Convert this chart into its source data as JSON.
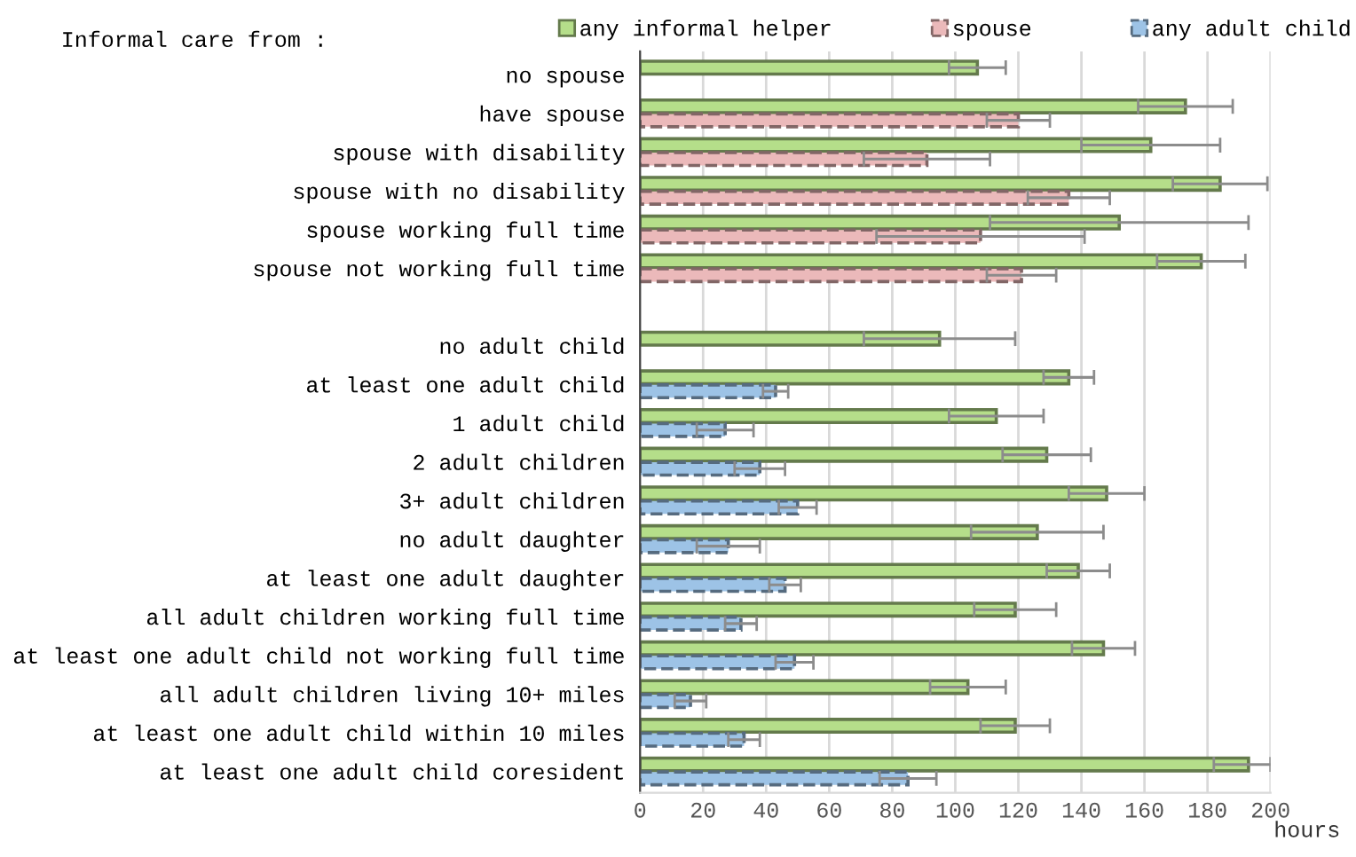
{
  "chart_data": {
    "type": "bar",
    "orientation": "horizontal",
    "legend_title": "Informal care from :",
    "xlabel": "hours",
    "categories": [
      "no spouse",
      "have spouse",
      "spouse with disability",
      "spouse with no disability",
      "spouse working full time",
      "spouse not working full time",
      null,
      "no adult child",
      "at least one adult child",
      "1 adult child",
      "2 adult children",
      "3+ adult children",
      "no adult daughter",
      "at least one adult daughter",
      "all adult children working full time",
      "at least one adult child not working full time",
      "all adult children living 10+ miles",
      "at least one adult child within 10 miles",
      "at least one adult child coresident"
    ],
    "series": [
      {
        "name": "any informal helper",
        "color": "#b5de8a",
        "line_style": "solid",
        "values": [
          107,
          173,
          162,
          184,
          152,
          178,
          null,
          95,
          136,
          113,
          129,
          148,
          126,
          139,
          119,
          147,
          104,
          119,
          193
        ],
        "errors": [
          9,
          15,
          22,
          15,
          41,
          14,
          null,
          24,
          8,
          15,
          14,
          12,
          21,
          10,
          13,
          10,
          12,
          11,
          [
            182,
            200
          ]
        ]
      },
      {
        "name": "spouse",
        "color": "#ebb9ba",
        "line_style": "dashed",
        "values": [
          null,
          120,
          91,
          136,
          108,
          121,
          null,
          null,
          null,
          null,
          null,
          null,
          null,
          null,
          null,
          null,
          null,
          null,
          null
        ],
        "errors": [
          null,
          10,
          20,
          13,
          33,
          11,
          null,
          null,
          null,
          null,
          null,
          null,
          null,
          null,
          null,
          null,
          null,
          null,
          null
        ]
      },
      {
        "name": "any adult child",
        "color": "#9dc3e6",
        "line_style": "dashed",
        "values": [
          null,
          null,
          null,
          null,
          null,
          null,
          null,
          null,
          43,
          27,
          38,
          50,
          28,
          46,
          32,
          49,
          16,
          33,
          85
        ],
        "errors": [
          null,
          null,
          null,
          null,
          null,
          null,
          null,
          null,
          4,
          9,
          8,
          6,
          10,
          5,
          5,
          6,
          5,
          5,
          9
        ]
      }
    ],
    "xlim": [
      0,
      200
    ],
    "xticks": [
      0,
      20,
      40,
      60,
      80,
      100,
      120,
      140,
      160,
      180,
      200
    ],
    "grid": "x",
    "legend": "top"
  }
}
